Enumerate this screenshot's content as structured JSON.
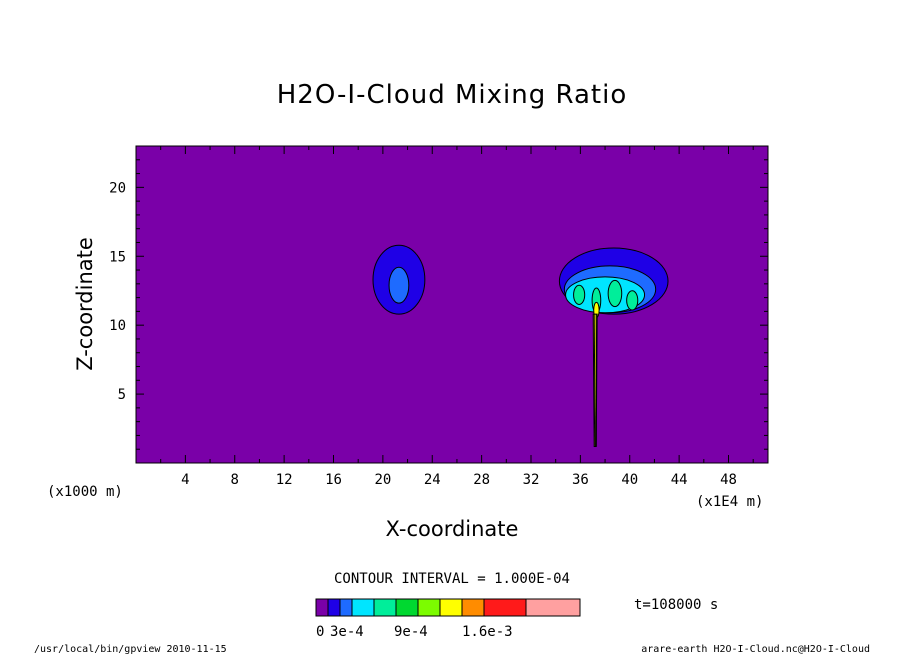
{
  "chart_data": {
    "type": "heatmap",
    "title": "H2O-I-Cloud Mixing Ratio",
    "xlabel": "X-coordinate",
    "ylabel": "Z-coordinate",
    "x_unit_left": "(x1000 m)",
    "x_unit_right": "(x1E4 m)",
    "xlim": [
      0,
      51.2
    ],
    "ylim": [
      0,
      23
    ],
    "x_ticks": [
      4,
      8,
      12,
      16,
      20,
      24,
      28,
      32,
      36,
      40,
      44,
      48
    ],
    "y_ticks": [
      5,
      10,
      15,
      20
    ],
    "contour_interval_text": "CONTOUR INTERVAL = 1.000E-04",
    "time_text": "t=108000 s",
    "colorbar": {
      "colors": [
        "#7a00a8",
        "#1f00e6",
        "#1e6bff",
        "#00e5ff",
        "#00ee9a",
        "#00d830",
        "#7cfc00",
        "#ffff00",
        "#ff8c00",
        "#ff1a1a",
        "#ffa0a0"
      ],
      "labels": [
        "0",
        "3e-4",
        "9e-4",
        "1.6e-3"
      ]
    },
    "cells": [
      {
        "name": "left-cell",
        "levels": [
          {
            "level": 1,
            "cx": 21.3,
            "cz": 13.3,
            "rx": 2.1,
            "rz": 2.5
          },
          {
            "level": 2,
            "cx": 21.3,
            "cz": 12.9,
            "rx": 0.8,
            "rz": 1.3
          }
        ]
      },
      {
        "name": "right-anvil",
        "levels": [
          {
            "level": 1,
            "cx": 38.7,
            "cz": 13.2,
            "rx": 4.4,
            "rz": 2.4
          },
          {
            "level": 2,
            "cx": 38.4,
            "cz": 12.6,
            "rx": 3.7,
            "rz": 1.7
          },
          {
            "level": 3,
            "cx": 38.0,
            "cz": 12.2,
            "rx": 3.2,
            "rz": 1.3
          },
          {
            "level": 4,
            "cx": 35.9,
            "cz": 12.2,
            "rx": 0.45,
            "rz": 0.7
          },
          {
            "level": 4,
            "cx": 37.3,
            "cz": 11.8,
            "rx": 0.35,
            "rz": 0.9
          },
          {
            "level": 4,
            "cx": 38.8,
            "cz": 12.3,
            "rx": 0.55,
            "rz": 0.95
          },
          {
            "level": 4,
            "cx": 40.2,
            "cz": 11.8,
            "rx": 0.45,
            "rz": 0.7
          },
          {
            "level": 7,
            "cx": 37.3,
            "cz": 11.1,
            "rx": 0.22,
            "rz": 0.55
          }
        ]
      }
    ],
    "updraft_column": {
      "x": 37.2,
      "z_bottom": 1.2,
      "z_top": 10.8
    }
  },
  "footer": {
    "left": "/usr/local/bin/gpview  2010-11-15",
    "right": "arare-earth_H2O-I-Cloud.nc@H2O-I-Cloud"
  }
}
